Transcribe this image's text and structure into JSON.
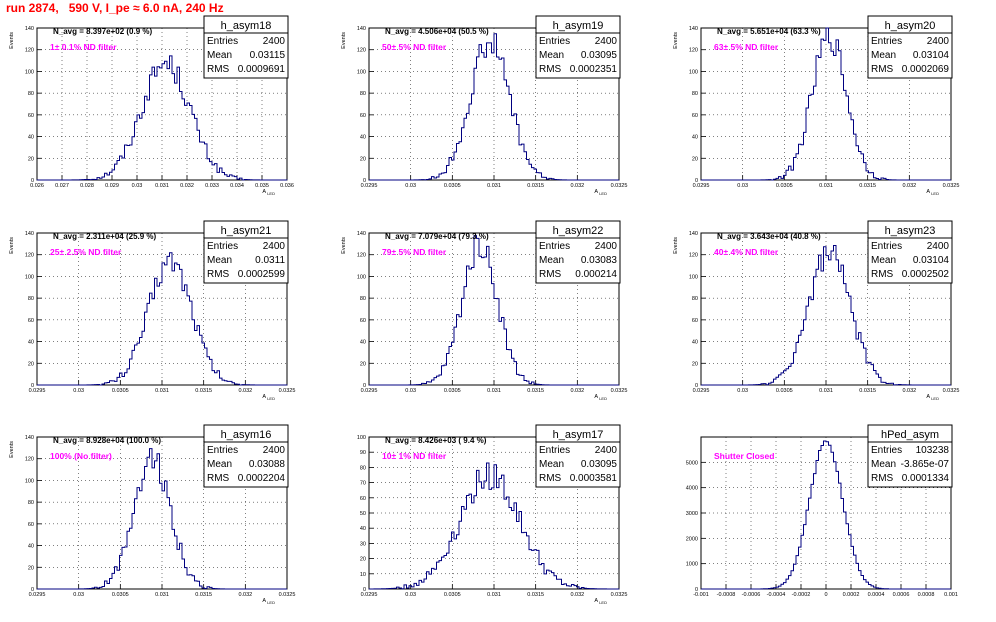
{
  "title": "run 2874,   590 V, I_pe ≈ 6.0 nA, 240 Hz",
  "colors": {
    "title": "#ff0000",
    "histogram": "#000080",
    "annotation": "#ff00ff",
    "grid": "#000000"
  },
  "chart_data": [
    {
      "type": "bar",
      "name": "h_asym18",
      "stats": {
        "Entries": "2400",
        "Mean": "0.03115",
        "RMS": "0.0009691"
      },
      "n_avg": "N_avg = 8.397e+02 (0.9 %)",
      "note": "1± 0.1% ND filter",
      "ylabel": "Events",
      "xlabel": "A_LED",
      "xlim": [
        0.026,
        0.036
      ],
      "ylim": [
        0,
        140
      ],
      "xticks": [
        "0.026",
        "0.027",
        "0.028",
        "0.029",
        "0.03",
        "0.031",
        "0.032",
        "0.033",
        "0.034",
        "0.035",
        "0.036"
      ],
      "yticks": [
        "0",
        "20",
        "40",
        "60",
        "80",
        "100",
        "120",
        "140"
      ],
      "gauss": {
        "mean": 0.03115,
        "rms": 0.00097,
        "peak": 108
      }
    },
    {
      "type": "bar",
      "name": "h_asym19",
      "stats": {
        "Entries": "2400",
        "Mean": "0.03095",
        "RMS": "0.0002351"
      },
      "n_avg": "N_avg = 4.506e+04 (50.5 %)",
      "note": "50± 5% ND filter",
      "ylabel": "Events",
      "xlabel": "A_LED",
      "xlim": [
        0.0295,
        0.0325
      ],
      "ylim": [
        0,
        140
      ],
      "xticks": [
        "0.0295",
        "0.03",
        "0.0305",
        "0.031",
        "0.0315",
        "0.032",
        "0.0325"
      ],
      "yticks": [
        "0",
        "20",
        "40",
        "60",
        "80",
        "100",
        "120",
        "140"
      ],
      "gauss": {
        "mean": 0.03095,
        "rms": 0.000235,
        "peak": 128
      }
    },
    {
      "type": "bar",
      "name": "h_asym20",
      "stats": {
        "Entries": "2400",
        "Mean": "0.03104",
        "RMS": "0.0002069"
      },
      "n_avg": "N_avg = 5.651e+04 (63.3 %)",
      "note": "63± 5% ND filter",
      "ylabel": "Events",
      "xlabel": "A_LED",
      "xlim": [
        0.0295,
        0.0325
      ],
      "ylim": [
        0,
        140
      ],
      "xticks": [
        "0.0295",
        "0.03",
        "0.0305",
        "0.031",
        "0.0315",
        "0.032",
        "0.0325"
      ],
      "yticks": [
        "0",
        "20",
        "40",
        "60",
        "80",
        "100",
        "120",
        "140"
      ],
      "gauss": {
        "mean": 0.03104,
        "rms": 0.000207,
        "peak": 132
      }
    },
    {
      "type": "bar",
      "name": "h_asym21",
      "stats": {
        "Entries": "2400",
        "Mean": "0.0311",
        "RMS": "0.0002599"
      },
      "n_avg": "N_avg = 2.311e+04 (25.9 %)",
      "note": "25± 2.5% ND filter",
      "ylabel": "Events",
      "xlabel": "A_LED",
      "xlim": [
        0.0295,
        0.0325
      ],
      "ylim": [
        0,
        140
      ],
      "xticks": [
        "0.0295",
        "0.03",
        "0.0305",
        "0.031",
        "0.0315",
        "0.032",
        "0.0325"
      ],
      "yticks": [
        "0",
        "20",
        "40",
        "60",
        "80",
        "100",
        "120",
        "140"
      ],
      "gauss": {
        "mean": 0.0311,
        "rms": 0.00026,
        "peak": 115
      }
    },
    {
      "type": "bar",
      "name": "h_asym22",
      "stats": {
        "Entries": "2400",
        "Mean": "0.03083",
        "RMS": "0.000214"
      },
      "n_avg": "N_avg = 7.079e+04 (79.3 %)",
      "note": "79± 5% ND filter",
      "ylabel": "Events",
      "xlabel": "A_LED",
      "xlim": [
        0.0295,
        0.0325
      ],
      "ylim": [
        0,
        140
      ],
      "xticks": [
        "0.0295",
        "0.03",
        "0.0305",
        "0.031",
        "0.0315",
        "0.032",
        "0.0325"
      ],
      "yticks": [
        "0",
        "20",
        "40",
        "60",
        "80",
        "100",
        "120",
        "140"
      ],
      "gauss": {
        "mean": 0.03083,
        "rms": 0.000214,
        "peak": 130
      }
    },
    {
      "type": "bar",
      "name": "h_asym23",
      "stats": {
        "Entries": "2400",
        "Mean": "0.03104",
        "RMS": "0.0002502"
      },
      "n_avg": "N_avg = 3.643e+04 (40.8 %)",
      "note": "40± 4% ND filter",
      "ylabel": "Events",
      "xlabel": "A_LED",
      "xlim": [
        0.0295,
        0.0325
      ],
      "ylim": [
        0,
        140
      ],
      "xticks": [
        "0.0295",
        "0.03",
        "0.0305",
        "0.031",
        "0.0315",
        "0.032",
        "0.0325"
      ],
      "yticks": [
        "0",
        "20",
        "40",
        "60",
        "80",
        "100",
        "120",
        "140"
      ],
      "gauss": {
        "mean": 0.03104,
        "rms": 0.00025,
        "peak": 122
      }
    },
    {
      "type": "bar",
      "name": "h_asym16",
      "stats": {
        "Entries": "2400",
        "Mean": "0.03088",
        "RMS": "0.0002204"
      },
      "n_avg": "N_avg = 8.928e+04 (100.0 %)",
      "note": "100% (No filter)",
      "ylabel": "Events",
      "xlabel": "A_LED",
      "xlim": [
        0.0295,
        0.0325
      ],
      "ylim": [
        0,
        140
      ],
      "xticks": [
        "0.0295",
        "0.03",
        "0.0305",
        "0.031",
        "0.0315",
        "0.032",
        "0.0325"
      ],
      "yticks": [
        "0",
        "20",
        "40",
        "60",
        "80",
        "100",
        "120",
        "140"
      ],
      "gauss": {
        "mean": 0.03088,
        "rms": 0.00022,
        "peak": 122
      }
    },
    {
      "type": "bar",
      "name": "h_asym17",
      "stats": {
        "Entries": "2400",
        "Mean": "0.03095",
        "RMS": "0.0003581"
      },
      "n_avg": "N_avg = 8.426e+03 ( 9.4 %)",
      "note": "10± 1% ND filter",
      "ylabel": "",
      "xlabel": "A_LED",
      "xlim": [
        0.0295,
        0.0325
      ],
      "ylim": [
        0,
        100
      ],
      "xticks": [
        "0.0295",
        "0.03",
        "0.0305",
        "0.031",
        "0.0315",
        "0.032",
        "0.0325"
      ],
      "yticks": [
        "0",
        "10",
        "20",
        "30",
        "40",
        "50",
        "60",
        "70",
        "80",
        "90",
        "100"
      ],
      "gauss": {
        "mean": 0.03095,
        "rms": 0.00036,
        "peak": 75
      }
    },
    {
      "type": "bar",
      "name": "hPed_asym",
      "stats": {
        "Entries": "103238",
        "Mean": "-3.865e-07",
        "RMS": "0.0001334"
      },
      "n_avg": "",
      "note": "Shutter Closed",
      "ylabel": "",
      "xlabel": "",
      "xlim": [
        -0.001,
        0.001
      ],
      "ylim": [
        0,
        6000
      ],
      "xticks": [
        "-0.001",
        "-0.0008",
        "-0.0006",
        "-0.0004",
        "-0.0002",
        "0",
        "0.0002",
        "0.0004",
        "0.0006",
        "0.0008",
        "0.001"
      ],
      "yticks": [
        "0",
        "1000",
        "2000",
        "3000",
        "4000",
        "5000"
      ],
      "gauss": {
        "mean": 0,
        "rms": 0.000133,
        "peak": 5800
      }
    }
  ]
}
